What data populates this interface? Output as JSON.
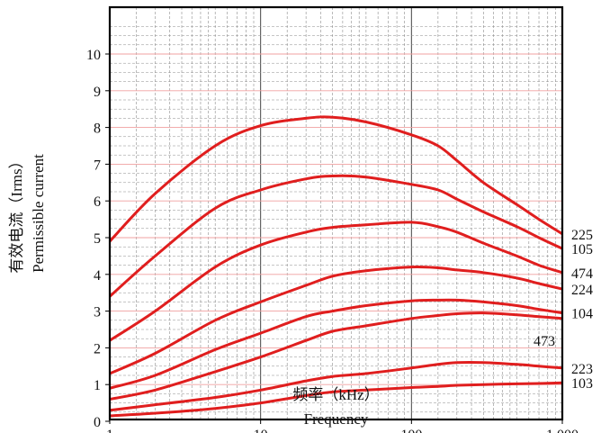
{
  "chart_data": {
    "type": "line",
    "x_scale": "log",
    "xlim": [
      1,
      1000
    ],
    "ylim": [
      0,
      11
    ],
    "x_ticks": [
      {
        "value": 1,
        "label": "1"
      },
      {
        "value": 10,
        "label": "10"
      },
      {
        "value": 100,
        "label": "100"
      },
      {
        "value": 1000,
        "label": "1,000"
      }
    ],
    "y_ticks": [
      {
        "value": 0,
        "label": "0"
      },
      {
        "value": 1,
        "label": "1"
      },
      {
        "value": 2,
        "label": "2"
      },
      {
        "value": 3,
        "label": "3"
      },
      {
        "value": 4,
        "label": "4"
      },
      {
        "value": 5,
        "label": "5"
      },
      {
        "value": 6,
        "label": "6"
      },
      {
        "value": 7,
        "label": "7"
      },
      {
        "value": 8,
        "label": "8"
      },
      {
        "value": 9,
        "label": "9"
      },
      {
        "value": 10,
        "label": "10"
      }
    ],
    "xlabel": "频率（kHz）",
    "xlabel_en": "Frequency",
    "ylabel": "有效电流（Irms）",
    "ylabel_en": "Permissible current",
    "grid": true,
    "colors": {
      "series": "#e01e1e",
      "grid": "#8c8c8c",
      "grid_integer": "#f0a0a0",
      "frame": "#000000"
    },
    "series": [
      {
        "name": "225",
        "label_pos": "right",
        "x": [
          1,
          2,
          5,
          10,
          20,
          30,
          50,
          100,
          150,
          200,
          300,
          500,
          700,
          1000
        ],
        "y": [
          4.9,
          6.2,
          7.5,
          8.05,
          8.25,
          8.28,
          8.15,
          7.8,
          7.5,
          7.1,
          6.5,
          5.9,
          5.5,
          5.1
        ]
      },
      {
        "name": "105",
        "label_pos": "right",
        "x": [
          1,
          2,
          5,
          10,
          20,
          30,
          50,
          100,
          150,
          200,
          300,
          500,
          700,
          1000
        ],
        "y": [
          3.4,
          4.5,
          5.8,
          6.3,
          6.6,
          6.68,
          6.65,
          6.45,
          6.3,
          6.05,
          5.7,
          5.3,
          5.0,
          4.7
        ]
      },
      {
        "name": "474",
        "label_pos": "right",
        "x": [
          1,
          2,
          5,
          10,
          20,
          30,
          50,
          100,
          150,
          200,
          300,
          500,
          700,
          1000
        ],
        "y": [
          2.2,
          3.0,
          4.2,
          4.8,
          5.15,
          5.28,
          5.35,
          5.42,
          5.3,
          5.15,
          4.85,
          4.5,
          4.25,
          4.05
        ]
      },
      {
        "name": "224",
        "label_pos": "right",
        "x": [
          1,
          2,
          5,
          10,
          20,
          30,
          50,
          100,
          150,
          200,
          300,
          500,
          700,
          1000
        ],
        "y": [
          1.3,
          1.85,
          2.75,
          3.25,
          3.7,
          3.95,
          4.1,
          4.2,
          4.18,
          4.12,
          4.05,
          3.9,
          3.75,
          3.6
        ]
      },
      {
        "name": "104",
        "label_pos": "right",
        "x": [
          1,
          2,
          5,
          10,
          20,
          30,
          50,
          100,
          150,
          200,
          300,
          500,
          700,
          1000
        ],
        "y": [
          0.9,
          1.25,
          1.95,
          2.4,
          2.85,
          3.0,
          3.15,
          3.28,
          3.3,
          3.3,
          3.25,
          3.15,
          3.05,
          2.95
        ]
      },
      {
        "name": "473",
        "label_pos": "below-right",
        "x": [
          1,
          2,
          5,
          10,
          20,
          30,
          50,
          100,
          150,
          200,
          300,
          500,
          700,
          1000
        ],
        "y": [
          0.6,
          0.85,
          1.35,
          1.75,
          2.2,
          2.45,
          2.6,
          2.8,
          2.88,
          2.93,
          2.95,
          2.9,
          2.85,
          2.8
        ]
      },
      {
        "name": "223",
        "label_pos": "right",
        "x": [
          1,
          2,
          5,
          10,
          20,
          30,
          50,
          100,
          150,
          200,
          300,
          500,
          700,
          1000
        ],
        "y": [
          0.3,
          0.45,
          0.65,
          0.85,
          1.1,
          1.22,
          1.3,
          1.45,
          1.55,
          1.6,
          1.6,
          1.55,
          1.5,
          1.45
        ]
      },
      {
        "name": "103",
        "label_pos": "right",
        "x": [
          1,
          2,
          5,
          10,
          20,
          30,
          50,
          100,
          150,
          200,
          300,
          500,
          700,
          1000
        ],
        "y": [
          0.15,
          0.22,
          0.35,
          0.5,
          0.7,
          0.8,
          0.85,
          0.92,
          0.95,
          0.98,
          1.0,
          1.02,
          1.03,
          1.05
        ]
      }
    ]
  }
}
